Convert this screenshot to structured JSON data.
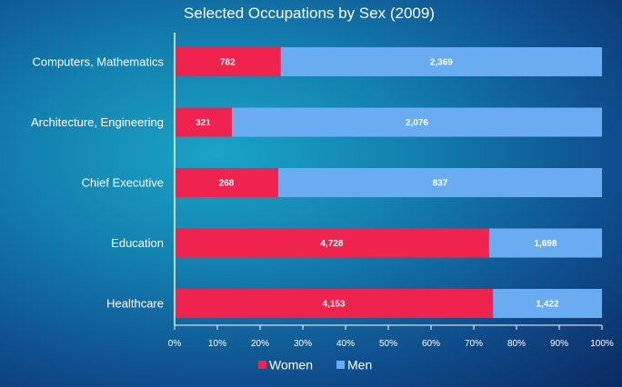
{
  "chart_data": {
    "type": "bar",
    "orientation": "horizontal",
    "stacked": "percent",
    "title": "Selected Occupations by Sex (2009)",
    "categories": [
      "Computers, Mathematics",
      "Architecture, Engineering",
      "Chief Executive",
      "Education",
      "Healthcare"
    ],
    "series": [
      {
        "name": "Women",
        "values": [
          782,
          321,
          268,
          4728,
          4153
        ],
        "labels": [
          "782",
          "321",
          "268",
          "4,728",
          "4,153"
        ],
        "color": "#f0224e"
      },
      {
        "name": "Men",
        "values": [
          2369,
          2076,
          837,
          1698,
          1422
        ],
        "labels": [
          "2,369",
          "2,076",
          "837",
          "1,698",
          "1,422"
        ],
        "color": "#6aacf2"
      }
    ],
    "x_ticks": [
      "0%",
      "10%",
      "20%",
      "30%",
      "40%",
      "50%",
      "60%",
      "70%",
      "80%",
      "90%",
      "100%"
    ],
    "xlim": [
      0,
      100
    ],
    "grid": false,
    "legend": "bottom"
  },
  "colors": {
    "women": "#f0224e",
    "men": "#6aacf2",
    "axis": "#ffffff"
  }
}
